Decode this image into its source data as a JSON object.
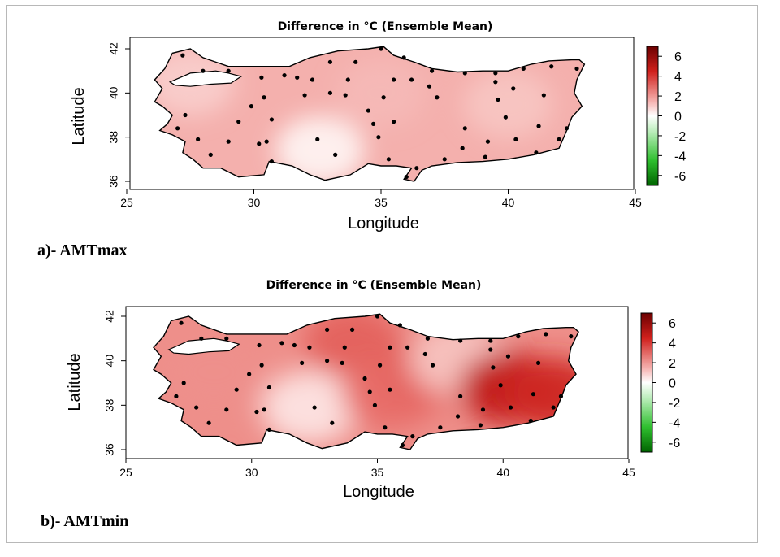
{
  "colors": {
    "land_base": "#f4b0ad",
    "land_light": "#fad4d2",
    "land_mid": "#ee8f8a",
    "land_strong": "#e2534e",
    "land_deep": "#cc1a14",
    "colorbar_top": "#6b0000",
    "colorbar_mid": "#ffffff",
    "colorbar_bottom": "#006400",
    "station": "#000000",
    "frame": "#000000"
  },
  "chart_data": [
    {
      "type": "heatmap",
      "title": "Difference in °C (Ensemble Mean)",
      "xlabel": "Longitude",
      "ylabel": "Latitude",
      "xlim": [
        25,
        45
      ],
      "ylim": [
        35.7,
        42.4
      ],
      "xticks": [
        "25",
        "30",
        "35",
        "40",
        "45"
      ],
      "yticks": [
        "36",
        "38",
        "40",
        "42"
      ],
      "colorbar": {
        "range": [
          -7,
          7
        ],
        "ticks": [
          "6",
          "4",
          "2",
          "0",
          "-2",
          "-4",
          "-6"
        ]
      },
      "caption": "a)- AMTmax",
      "value_field": [
        {
          "lon": 27.5,
          "lat": 40.5,
          "value": 1.4
        },
        {
          "lon": 32.6,
          "lat": 37.4,
          "value": 0.4
        },
        {
          "lon": 35.0,
          "lat": 40.0,
          "value": 1.9
        },
        {
          "lon": 40.0,
          "lat": 39.5,
          "value": 1.6
        }
      ],
      "stations": [
        [
          27.2,
          41.7
        ],
        [
          28.0,
          41.0
        ],
        [
          29.0,
          41.0
        ],
        [
          30.3,
          40.7
        ],
        [
          31.2,
          40.8
        ],
        [
          31.7,
          40.7
        ],
        [
          32.3,
          40.6
        ],
        [
          33.0,
          41.4
        ],
        [
          34.0,
          41.4
        ],
        [
          35.0,
          42.0
        ],
        [
          35.9,
          41.6
        ],
        [
          37.0,
          41.0
        ],
        [
          38.3,
          40.9
        ],
        [
          39.5,
          40.9
        ],
        [
          40.6,
          41.1
        ],
        [
          41.7,
          41.2
        ],
        [
          42.7,
          41.1
        ],
        [
          27.3,
          39.0
        ],
        [
          27.0,
          38.4
        ],
        [
          27.8,
          37.9
        ],
        [
          28.3,
          37.2
        ],
        [
          29.0,
          37.8
        ],
        [
          30.2,
          37.7
        ],
        [
          30.5,
          37.8
        ],
        [
          30.7,
          36.9
        ],
        [
          29.4,
          38.7
        ],
        [
          29.9,
          39.4
        ],
        [
          30.4,
          39.8
        ],
        [
          30.7,
          38.8
        ],
        [
          32.0,
          39.9
        ],
        [
          32.5,
          37.9
        ],
        [
          33.2,
          37.2
        ],
        [
          33.0,
          40.0
        ],
        [
          33.7,
          40.6
        ],
        [
          33.6,
          39.9
        ],
        [
          34.5,
          39.2
        ],
        [
          34.7,
          38.6
        ],
        [
          35.5,
          38.7
        ],
        [
          34.9,
          38.0
        ],
        [
          35.3,
          37.0
        ],
        [
          35.1,
          39.8
        ],
        [
          35.5,
          40.6
        ],
        [
          36.2,
          40.6
        ],
        [
          36.9,
          40.3
        ],
        [
          37.2,
          39.8
        ],
        [
          37.5,
          37.0
        ],
        [
          38.2,
          37.5
        ],
        [
          38.3,
          38.4
        ],
        [
          39.1,
          37.1
        ],
        [
          39.2,
          37.8
        ],
        [
          39.6,
          39.7
        ],
        [
          39.5,
          40.5
        ],
        [
          40.2,
          40.2
        ],
        [
          39.9,
          38.9
        ],
        [
          40.3,
          37.9
        ],
        [
          41.1,
          37.3
        ],
        [
          41.2,
          38.5
        ],
        [
          41.4,
          39.9
        ],
        [
          42.0,
          37.9
        ],
        [
          42.3,
          38.4
        ],
        [
          36.0,
          36.2
        ],
        [
          36.4,
          36.6
        ]
      ]
    },
    {
      "type": "heatmap",
      "title": "Difference in °C (Ensemble Mean)",
      "xlabel": "Longitude",
      "ylabel": "Latitude",
      "xlim": [
        25,
        45
      ],
      "ylim": [
        35.7,
        42.4
      ],
      "xticks": [
        "25",
        "30",
        "35",
        "40",
        "45"
      ],
      "yticks": [
        "36",
        "38",
        "40",
        "42"
      ],
      "colorbar": {
        "range": [
          -7,
          7
        ],
        "ticks": [
          "6",
          "4",
          "2",
          "0",
          "-2",
          "-4",
          "-6"
        ]
      },
      "caption": "b)- AMTmin",
      "value_field": [
        {
          "lon": 28.5,
          "lat": 39.5,
          "value": 2.8
        },
        {
          "lon": 32.3,
          "lat": 37.9,
          "value": 0.8
        },
        {
          "lon": 34.0,
          "lat": 40.8,
          "value": 3.8
        },
        {
          "lon": 35.5,
          "lat": 38.5,
          "value": 3.5
        },
        {
          "lon": 37.0,
          "lat": 39.5,
          "value": 3.7
        },
        {
          "lon": 38.2,
          "lat": 40.1,
          "value": 1.6
        },
        {
          "lon": 40.2,
          "lat": 38.8,
          "value": 5.8
        },
        {
          "lon": 42.0,
          "lat": 38.5,
          "value": 5.2
        }
      ],
      "stations": [
        [
          27.2,
          41.7
        ],
        [
          28.0,
          41.0
        ],
        [
          29.0,
          41.0
        ],
        [
          30.3,
          40.7
        ],
        [
          31.2,
          40.8
        ],
        [
          31.7,
          40.7
        ],
        [
          32.3,
          40.6
        ],
        [
          33.0,
          41.4
        ],
        [
          34.0,
          41.4
        ],
        [
          35.0,
          42.0
        ],
        [
          35.9,
          41.6
        ],
        [
          37.0,
          41.0
        ],
        [
          38.3,
          40.9
        ],
        [
          39.5,
          40.9
        ],
        [
          40.6,
          41.1
        ],
        [
          41.7,
          41.2
        ],
        [
          42.7,
          41.1
        ],
        [
          27.3,
          39.0
        ],
        [
          27.0,
          38.4
        ],
        [
          27.8,
          37.9
        ],
        [
          28.3,
          37.2
        ],
        [
          29.0,
          37.8
        ],
        [
          30.2,
          37.7
        ],
        [
          30.5,
          37.8
        ],
        [
          30.7,
          36.9
        ],
        [
          29.4,
          38.7
        ],
        [
          29.9,
          39.4
        ],
        [
          30.4,
          39.8
        ],
        [
          30.7,
          38.8
        ],
        [
          32.0,
          39.9
        ],
        [
          32.5,
          37.9
        ],
        [
          33.2,
          37.2
        ],
        [
          33.0,
          40.0
        ],
        [
          33.7,
          40.6
        ],
        [
          33.6,
          39.9
        ],
        [
          34.5,
          39.2
        ],
        [
          34.7,
          38.6
        ],
        [
          35.5,
          38.7
        ],
        [
          34.9,
          38.0
        ],
        [
          35.3,
          37.0
        ],
        [
          35.1,
          39.8
        ],
        [
          35.5,
          40.6
        ],
        [
          36.2,
          40.6
        ],
        [
          36.9,
          40.3
        ],
        [
          37.2,
          39.8
        ],
        [
          37.5,
          37.0
        ],
        [
          38.2,
          37.5
        ],
        [
          38.3,
          38.4
        ],
        [
          39.1,
          37.1
        ],
        [
          39.2,
          37.8
        ],
        [
          39.6,
          39.7
        ],
        [
          39.5,
          40.5
        ],
        [
          40.2,
          40.2
        ],
        [
          39.9,
          38.9
        ],
        [
          40.3,
          37.9
        ],
        [
          41.1,
          37.3
        ],
        [
          41.2,
          38.5
        ],
        [
          41.4,
          39.9
        ],
        [
          42.0,
          37.9
        ],
        [
          42.3,
          38.4
        ],
        [
          36.0,
          36.2
        ],
        [
          36.4,
          36.6
        ]
      ]
    }
  ]
}
